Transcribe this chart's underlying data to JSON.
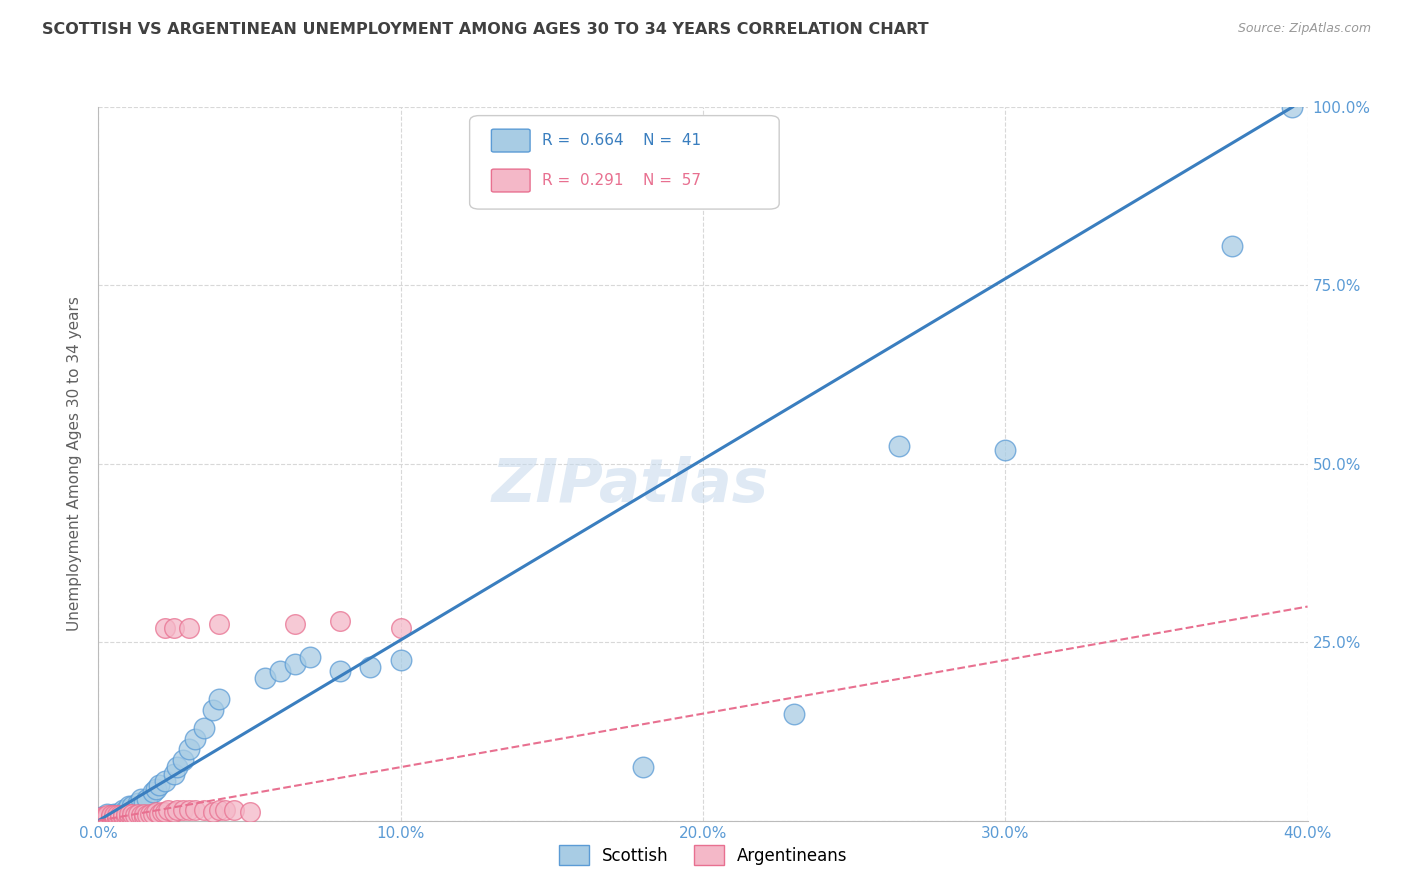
{
  "title": "SCOTTISH VS ARGENTINEAN UNEMPLOYMENT AMONG AGES 30 TO 34 YEARS CORRELATION CHART",
  "source": "Source: ZipAtlas.com",
  "ylabel": "Unemployment Among Ages 30 to 34 years",
  "xlim": [
    0.0,
    0.4
  ],
  "ylim": [
    0.0,
    1.0
  ],
  "xticks": [
    0.0,
    0.1,
    0.2,
    0.3,
    0.4
  ],
  "yticks": [
    0.0,
    0.25,
    0.5,
    0.75,
    1.0
  ],
  "xticklabels": [
    "0.0%",
    "10.0%",
    "20.0%",
    "30.0%",
    "40.0%"
  ],
  "yticklabels_right": [
    "",
    "25.0%",
    "50.0%",
    "75.0%",
    "100.0%"
  ],
  "legend_blue_r": "0.664",
  "legend_blue_n": "41",
  "legend_pink_r": "0.291",
  "legend_pink_n": "57",
  "scatter_blue": [
    [
      0.001,
      0.005
    ],
    [
      0.002,
      0.005
    ],
    [
      0.003,
      0.005
    ],
    [
      0.003,
      0.01
    ],
    [
      0.004,
      0.005
    ],
    [
      0.005,
      0.01
    ],
    [
      0.006,
      0.01
    ],
    [
      0.007,
      0.01
    ],
    [
      0.008,
      0.015
    ],
    [
      0.009,
      0.015
    ],
    [
      0.01,
      0.02
    ],
    [
      0.011,
      0.02
    ],
    [
      0.013,
      0.025
    ],
    [
      0.014,
      0.03
    ],
    [
      0.015,
      0.025
    ],
    [
      0.016,
      0.03
    ],
    [
      0.018,
      0.04
    ],
    [
      0.019,
      0.045
    ],
    [
      0.02,
      0.05
    ],
    [
      0.022,
      0.055
    ],
    [
      0.025,
      0.065
    ],
    [
      0.026,
      0.075
    ],
    [
      0.028,
      0.085
    ],
    [
      0.03,
      0.1
    ],
    [
      0.032,
      0.115
    ],
    [
      0.035,
      0.13
    ],
    [
      0.038,
      0.155
    ],
    [
      0.04,
      0.17
    ],
    [
      0.055,
      0.2
    ],
    [
      0.06,
      0.21
    ],
    [
      0.065,
      0.22
    ],
    [
      0.07,
      0.23
    ],
    [
      0.08,
      0.21
    ],
    [
      0.09,
      0.215
    ],
    [
      0.1,
      0.225
    ],
    [
      0.18,
      0.075
    ],
    [
      0.265,
      0.525
    ],
    [
      0.3,
      0.52
    ],
    [
      0.375,
      0.805
    ],
    [
      0.23,
      0.15
    ],
    [
      0.395,
      1.0
    ]
  ],
  "scatter_pink": [
    [
      0.001,
      0.003
    ],
    [
      0.001,
      0.005
    ],
    [
      0.002,
      0.003
    ],
    [
      0.002,
      0.005
    ],
    [
      0.003,
      0.003
    ],
    [
      0.003,
      0.005
    ],
    [
      0.003,
      0.008
    ],
    [
      0.004,
      0.003
    ],
    [
      0.004,
      0.005
    ],
    [
      0.004,
      0.008
    ],
    [
      0.005,
      0.003
    ],
    [
      0.005,
      0.005
    ],
    [
      0.005,
      0.008
    ],
    [
      0.006,
      0.003
    ],
    [
      0.006,
      0.005
    ],
    [
      0.006,
      0.008
    ],
    [
      0.007,
      0.005
    ],
    [
      0.007,
      0.008
    ],
    [
      0.008,
      0.005
    ],
    [
      0.008,
      0.008
    ],
    [
      0.009,
      0.005
    ],
    [
      0.009,
      0.01
    ],
    [
      0.01,
      0.005
    ],
    [
      0.01,
      0.01
    ],
    [
      0.011,
      0.005
    ],
    [
      0.011,
      0.01
    ],
    [
      0.012,
      0.008
    ],
    [
      0.013,
      0.01
    ],
    [
      0.014,
      0.008
    ],
    [
      0.015,
      0.005
    ],
    [
      0.015,
      0.01
    ],
    [
      0.016,
      0.008
    ],
    [
      0.017,
      0.01
    ],
    [
      0.018,
      0.01
    ],
    [
      0.019,
      0.012
    ],
    [
      0.02,
      0.01
    ],
    [
      0.021,
      0.012
    ],
    [
      0.022,
      0.012
    ],
    [
      0.023,
      0.015
    ],
    [
      0.025,
      0.012
    ],
    [
      0.026,
      0.015
    ],
    [
      0.028,
      0.015
    ],
    [
      0.03,
      0.015
    ],
    [
      0.032,
      0.015
    ],
    [
      0.035,
      0.015
    ],
    [
      0.038,
      0.012
    ],
    [
      0.04,
      0.015
    ],
    [
      0.042,
      0.015
    ],
    [
      0.045,
      0.015
    ],
    [
      0.05,
      0.012
    ],
    [
      0.022,
      0.27
    ],
    [
      0.025,
      0.27
    ],
    [
      0.03,
      0.27
    ],
    [
      0.04,
      0.275
    ],
    [
      0.065,
      0.275
    ],
    [
      0.08,
      0.28
    ],
    [
      0.1,
      0.27
    ]
  ],
  "blue_line_x": [
    0.0,
    0.395
  ],
  "blue_line_y": [
    0.0,
    1.0
  ],
  "pink_line_x": [
    0.0,
    0.4
  ],
  "pink_line_y": [
    0.0,
    0.3
  ],
  "blue_dot_color": "#a8cce4",
  "blue_edge_color": "#5b9bd5",
  "pink_dot_color": "#f4b8c8",
  "pink_edge_color": "#e87090",
  "blue_line_color": "#3a7ebf",
  "pink_line_color": "#e87090",
  "grid_color": "#d8d8d8",
  "watermark": "ZIPatlas",
  "watermark_color": "#c5d8ec",
  "background_color": "#ffffff",
  "tick_color": "#5b9bd5",
  "title_color": "#404040",
  "ylabel_color": "#606060"
}
